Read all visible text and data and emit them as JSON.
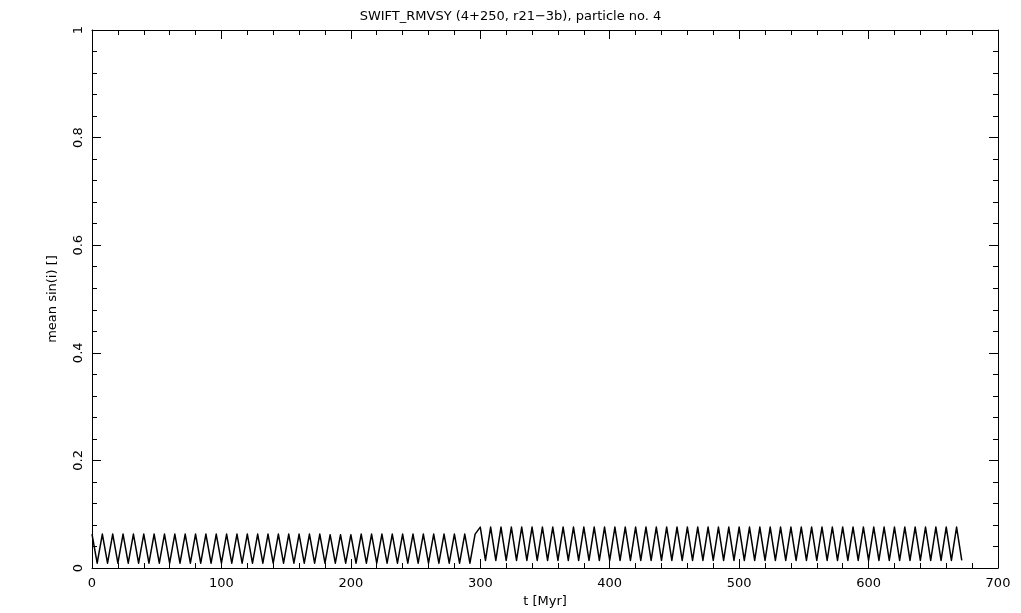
{
  "chart_data": {
    "type": "line",
    "title": "SWIFT_RMVSY (4+250, r21−3b), particle no. 4",
    "xlabel": "t [Myr]",
    "ylabel": "mean sin(i) []",
    "series": [
      {
        "color": "#000000",
        "x": [
          0,
          4,
          8,
          12,
          16,
          20,
          24,
          28,
          32,
          36,
          40,
          44,
          48,
          52,
          56,
          60,
          64,
          68,
          72,
          76,
          80,
          84,
          88,
          92,
          96,
          100,
          104,
          108,
          112,
          116,
          120,
          124,
          128,
          132,
          136,
          140,
          144,
          148,
          152,
          156,
          160,
          164,
          168,
          172,
          176,
          180,
          184,
          188,
          192,
          196,
          200,
          204,
          208,
          212,
          216,
          220,
          224,
          228,
          232,
          236,
          240,
          244,
          248,
          252,
          256,
          260,
          264,
          268,
          272,
          276,
          280,
          284,
          288,
          292,
          296,
          300,
          304,
          308,
          312,
          316,
          320,
          324,
          328,
          332,
          336,
          340,
          344,
          348,
          352,
          356,
          360,
          364,
          368,
          372,
          376,
          380,
          384,
          388,
          392,
          396,
          400,
          404,
          408,
          412,
          416,
          420,
          424,
          428,
          432,
          436,
          440,
          444,
          448,
          452,
          456,
          460,
          464,
          468,
          472,
          476,
          480,
          484,
          488,
          492,
          496,
          500,
          504,
          508,
          512,
          516,
          520,
          524,
          528,
          532,
          536,
          540,
          544,
          548,
          552,
          556,
          560,
          564,
          568,
          572,
          576,
          580,
          584,
          588,
          592,
          596,
          600,
          604,
          608,
          612,
          616,
          620,
          624,
          628,
          632,
          636,
          640,
          644,
          648,
          652,
          656,
          660,
          664,
          668,
          672
        ],
        "values": [
          0.063,
          0.009,
          0.063,
          0.009,
          0.063,
          0.009,
          0.063,
          0.009,
          0.063,
          0.009,
          0.063,
          0.009,
          0.063,
          0.009,
          0.063,
          0.009,
          0.063,
          0.009,
          0.063,
          0.009,
          0.063,
          0.009,
          0.063,
          0.009,
          0.063,
          0.009,
          0.063,
          0.009,
          0.063,
          0.009,
          0.063,
          0.009,
          0.063,
          0.009,
          0.063,
          0.009,
          0.063,
          0.009,
          0.063,
          0.009,
          0.063,
          0.009,
          0.063,
          0.009,
          0.063,
          0.009,
          0.062,
          0.009,
          0.062,
          0.009,
          0.062,
          0.009,
          0.063,
          0.009,
          0.063,
          0.009,
          0.063,
          0.009,
          0.063,
          0.009,
          0.063,
          0.009,
          0.063,
          0.009,
          0.063,
          0.009,
          0.063,
          0.009,
          0.063,
          0.009,
          0.063,
          0.009,
          0.063,
          0.009,
          0.063,
          0.076,
          0.014,
          0.076,
          0.014,
          0.076,
          0.014,
          0.076,
          0.014,
          0.076,
          0.014,
          0.076,
          0.014,
          0.076,
          0.014,
          0.076,
          0.014,
          0.076,
          0.014,
          0.076,
          0.014,
          0.076,
          0.014,
          0.076,
          0.014,
          0.076,
          0.014,
          0.076,
          0.014,
          0.076,
          0.014,
          0.076,
          0.014,
          0.076,
          0.014,
          0.076,
          0.014,
          0.076,
          0.014,
          0.076,
          0.014,
          0.076,
          0.014,
          0.076,
          0.014,
          0.076,
          0.014,
          0.076,
          0.014,
          0.076,
          0.014,
          0.076,
          0.014,
          0.076,
          0.014,
          0.076,
          0.014,
          0.076,
          0.014,
          0.076,
          0.014,
          0.076,
          0.014,
          0.076,
          0.014,
          0.076,
          0.014,
          0.076,
          0.014,
          0.076,
          0.014,
          0.076,
          0.014,
          0.076,
          0.014,
          0.076,
          0.014,
          0.076,
          0.014,
          0.076,
          0.014,
          0.076,
          0.014,
          0.076,
          0.014,
          0.076,
          0.014,
          0.076,
          0.014,
          0.076,
          0.014,
          0.076,
          0.014,
          0.076,
          0.014
        ]
      }
    ],
    "xlim": [
      0,
      700
    ],
    "xticks": [
      0,
      100,
      200,
      300,
      400,
      500,
      600,
      700
    ],
    "ylim": [
      0,
      1
    ],
    "yticks": [
      0,
      0.2,
      0.4,
      0.6,
      0.8,
      1
    ],
    "marker": "none",
    "line_style": "solid",
    "grid": false
  }
}
